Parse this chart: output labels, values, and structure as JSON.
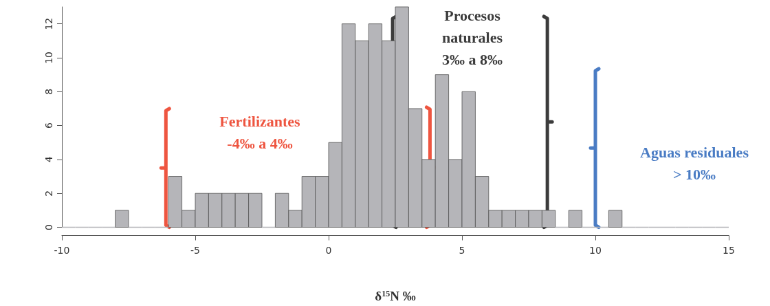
{
  "chart_data": {
    "type": "histogram",
    "bins": [
      -10,
      -9.5,
      -9,
      -8.5,
      -8,
      -7.5,
      -7,
      -6.5,
      -6,
      -5.5,
      -5,
      -4.5,
      -4,
      -3.5,
      -3,
      -2.5,
      -2,
      -1.5,
      -1,
      -0.5,
      0,
      0.5,
      1,
      1.5,
      2,
      2.5,
      3,
      3.5,
      4,
      4.5,
      5,
      5.5,
      6,
      6.5,
      7,
      7.5,
      8,
      8.5,
      9,
      9.5,
      10,
      10.5,
      11,
      11.5,
      12,
      12.5,
      13,
      13.5,
      14,
      14.5,
      15
    ],
    "values": [
      0,
      0,
      0,
      0,
      1,
      0,
      0,
      0,
      3,
      1,
      2,
      2,
      2,
      2,
      2,
      0,
      2,
      1,
      3,
      3,
      5,
      12,
      11,
      12,
      11,
      13,
      7,
      4,
      9,
      4,
      8,
      3,
      1,
      1,
      1,
      1,
      1,
      0,
      1,
      0,
      0,
      1,
      0,
      0,
      0,
      0,
      0,
      0,
      0,
      0
    ],
    "color": "#b5b5b9",
    "xlabel": "δ$^{15}$N ‰",
    "xlim": [
      -10,
      15
    ],
    "xticks": [
      -10,
      -5,
      0,
      5,
      10,
      15
    ],
    "ylim": [
      0,
      13
    ],
    "yticks": [
      0,
      2,
      4,
      6,
      8,
      10,
      12
    ],
    "grid": false,
    "ref_lines": [
      {
        "axis": "x",
        "value": -6.1,
        "label": "Fertilizantes\n-4‰ a 4‰",
        "color": "#ee5540"
      },
      {
        "axis": "x",
        "value": 3.8,
        "color": "#ee5540"
      },
      {
        "axis": "x",
        "value": 2.4,
        "label": "Procesos\nnaturales\n3‰ a 8‰",
        "color": "#3c3c3c"
      },
      {
        "axis": "x",
        "value": 8.2,
        "color": "#3c3c3c"
      },
      {
        "axis": "x",
        "value": 10,
        "label": "Aguas residuales\n> 10‰",
        "color": "#4a7cc4"
      }
    ]
  }
}
